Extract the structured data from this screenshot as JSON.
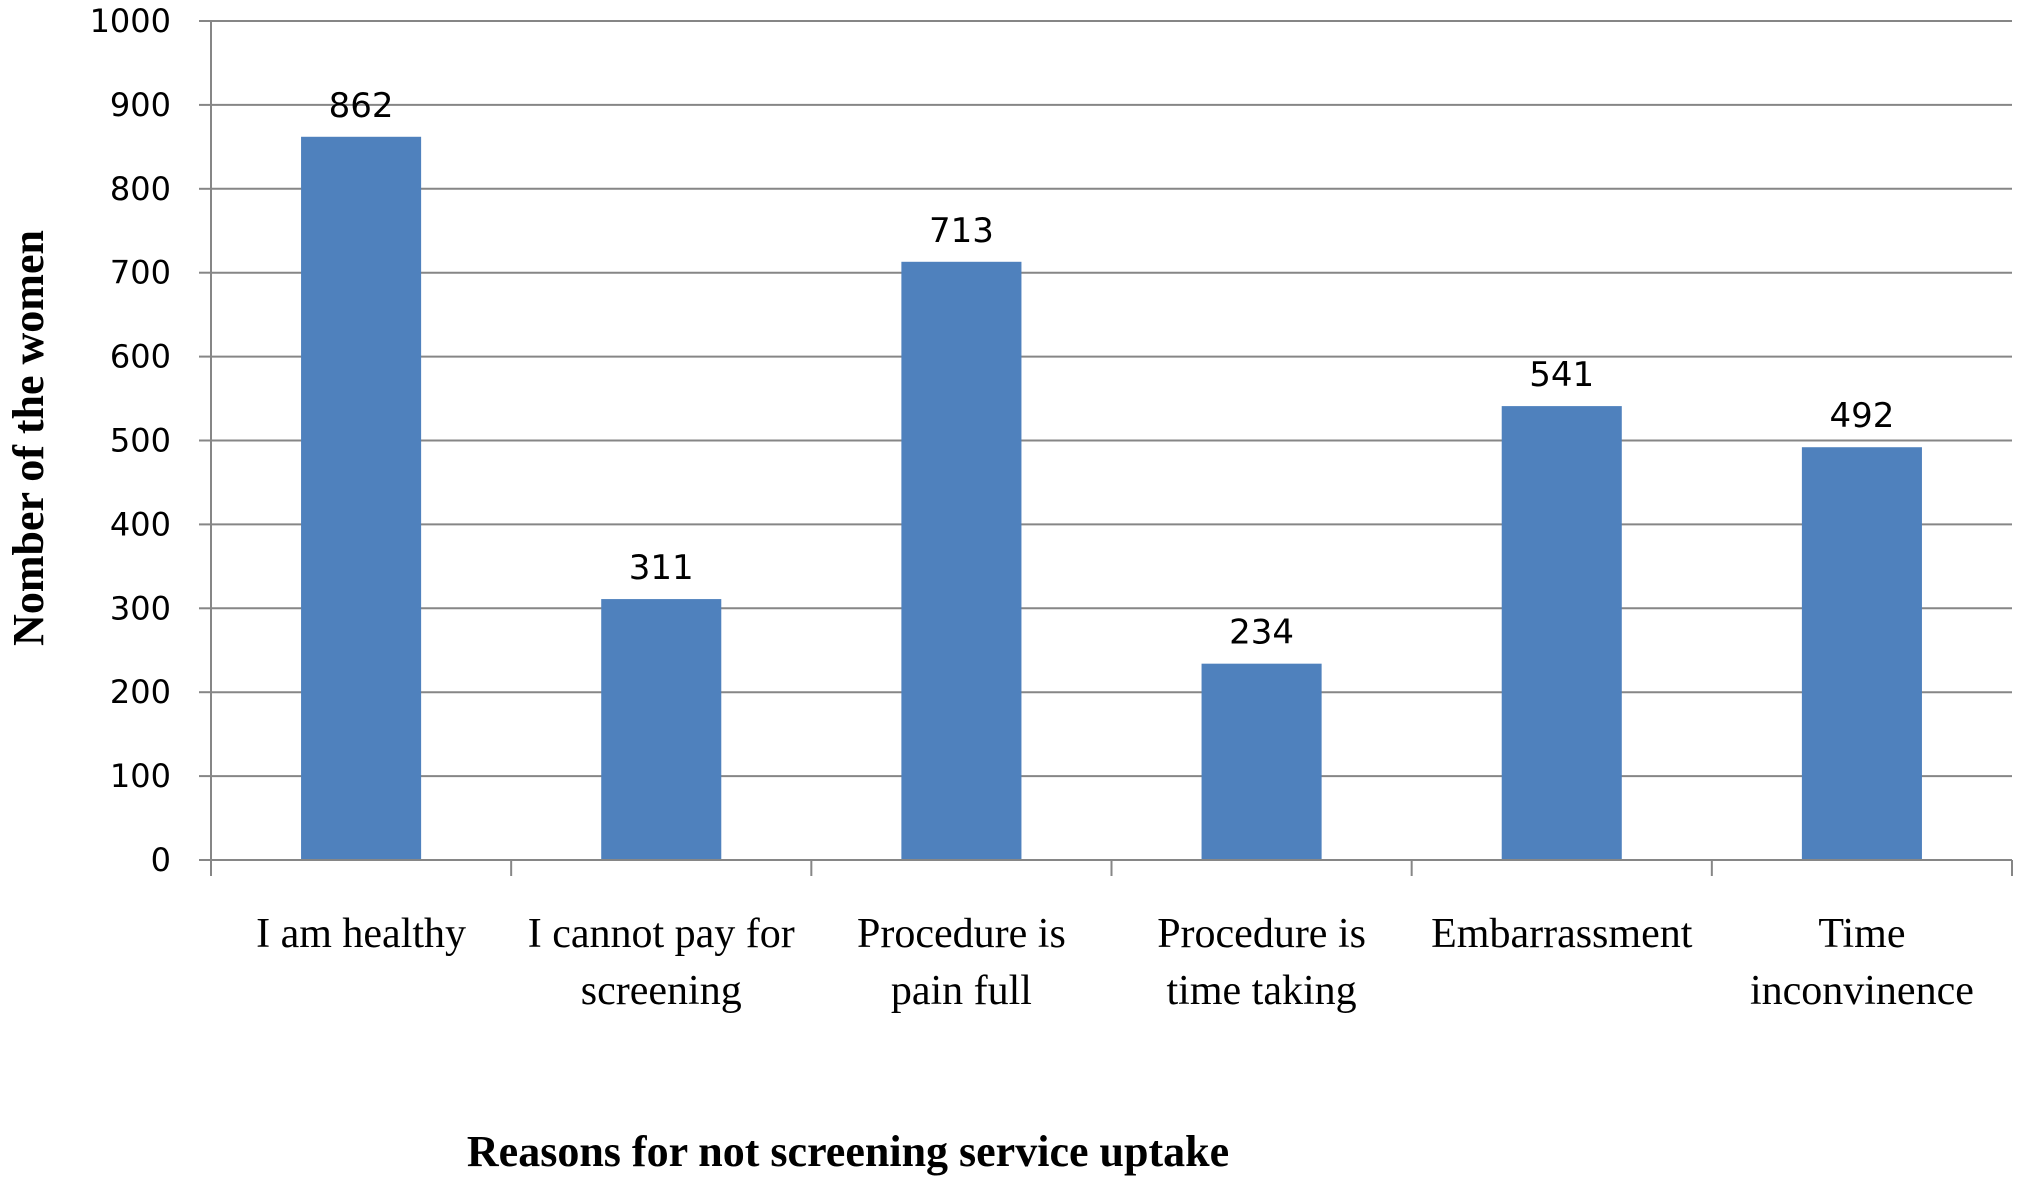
{
  "chart_data": {
    "type": "bar",
    "title": "",
    "xlabel": "Reasons for not screening service uptake",
    "ylabel": "Nomber of the women",
    "ylim": [
      0,
      1000
    ],
    "yticks": [
      "0",
      "100",
      "200",
      "300",
      "400",
      "500",
      "600",
      "700",
      "800",
      "900",
      "1000"
    ],
    "grid": true,
    "legend": "none",
    "categories": [
      [
        "I am healthy"
      ],
      [
        "I cannot pay for",
        "screening"
      ],
      [
        "Procedure is",
        "pain full"
      ],
      [
        "Procedure is",
        "time taking"
      ],
      [
        "Embarrassment"
      ],
      [
        "Time",
        "inconvinence"
      ]
    ],
    "values": [
      862,
      311,
      713,
      234,
      541,
      492
    ],
    "data_labels": [
      "862",
      "311",
      "713",
      "234",
      "541",
      "492"
    ],
    "colors": {
      "bar": "#4F81BD",
      "grid": "#868686",
      "axis": "#868686"
    }
  }
}
